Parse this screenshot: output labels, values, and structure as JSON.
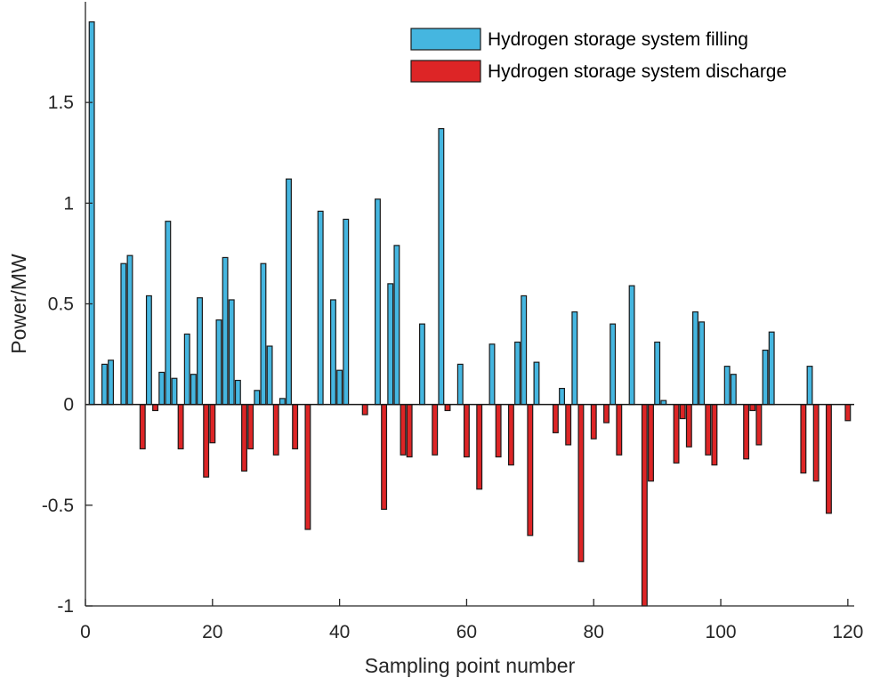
{
  "chart_data": {
    "type": "bar",
    "title": "",
    "xlabel": "Sampling point number",
    "ylabel": "Power/MW",
    "xlim": [
      0,
      121
    ],
    "ylim": [
      -1,
      2
    ],
    "xticks": [
      0,
      20,
      40,
      60,
      80,
      100,
      120
    ],
    "yticks": [
      -1,
      -0.5,
      0,
      0.5,
      1,
      1.5
    ],
    "ytick_labels": [
      "-1",
      "-0.5",
      "0",
      "0.5",
      "1",
      "1.5"
    ],
    "grid": false,
    "legend_position": "top-right",
    "colors": {
      "filling": "#45b6e0",
      "discharge": "#dd2526",
      "edge": "#1a1a1a",
      "axis": "#262626"
    },
    "series": [
      {
        "name": "Hydrogen storage system filling",
        "points": [
          {
            "x": 1,
            "y": 1.9
          },
          {
            "x": 3,
            "y": 0.2
          },
          {
            "x": 4,
            "y": 0.22
          },
          {
            "x": 6,
            "y": 0.7
          },
          {
            "x": 7,
            "y": 0.74
          },
          {
            "x": 10,
            "y": 0.54
          },
          {
            "x": 12,
            "y": 0.16
          },
          {
            "x": 13,
            "y": 0.91
          },
          {
            "x": 14,
            "y": 0.13
          },
          {
            "x": 16,
            "y": 0.35
          },
          {
            "x": 17,
            "y": 0.15
          },
          {
            "x": 18,
            "y": 0.53
          },
          {
            "x": 21,
            "y": 0.42
          },
          {
            "x": 22,
            "y": 0.73
          },
          {
            "x": 23,
            "y": 0.52
          },
          {
            "x": 24,
            "y": 0.12
          },
          {
            "x": 27,
            "y": 0.07
          },
          {
            "x": 28,
            "y": 0.7
          },
          {
            "x": 29,
            "y": 0.29
          },
          {
            "x": 31,
            "y": 0.03
          },
          {
            "x": 32,
            "y": 1.12
          },
          {
            "x": 37,
            "y": 0.96
          },
          {
            "x": 39,
            "y": 0.52
          },
          {
            "x": 40,
            "y": 0.17
          },
          {
            "x": 41,
            "y": 0.92
          },
          {
            "x": 46,
            "y": 1.02
          },
          {
            "x": 48,
            "y": 0.6
          },
          {
            "x": 49,
            "y": 0.79
          },
          {
            "x": 53,
            "y": 0.4
          },
          {
            "x": 56,
            "y": 1.37
          },
          {
            "x": 59,
            "y": 0.2
          },
          {
            "x": 64,
            "y": 0.3
          },
          {
            "x": 68,
            "y": 0.31
          },
          {
            "x": 69,
            "y": 0.54
          },
          {
            "x": 71,
            "y": 0.21
          },
          {
            "x": 75,
            "y": 0.08
          },
          {
            "x": 77,
            "y": 0.46
          },
          {
            "x": 83,
            "y": 0.4
          },
          {
            "x": 86,
            "y": 0.59
          },
          {
            "x": 90,
            "y": 0.31
          },
          {
            "x": 91,
            "y": 0.02
          },
          {
            "x": 96,
            "y": 0.46
          },
          {
            "x": 97,
            "y": 0.41
          },
          {
            "x": 101,
            "y": 0.19
          },
          {
            "x": 102,
            "y": 0.15
          },
          {
            "x": 107,
            "y": 0.27
          },
          {
            "x": 108,
            "y": 0.36
          },
          {
            "x": 114,
            "y": 0.19
          }
        ]
      },
      {
        "name": "Hydrogen storage system discharge",
        "points": [
          {
            "x": 9,
            "y": -0.22
          },
          {
            "x": 11,
            "y": -0.03
          },
          {
            "x": 15,
            "y": -0.22
          },
          {
            "x": 19,
            "y": -0.36
          },
          {
            "x": 20,
            "y": -0.19
          },
          {
            "x": 25,
            "y": -0.33
          },
          {
            "x": 26,
            "y": -0.22
          },
          {
            "x": 30,
            "y": -0.25
          },
          {
            "x": 33,
            "y": -0.22
          },
          {
            "x": 35,
            "y": -0.62
          },
          {
            "x": 44,
            "y": -0.05
          },
          {
            "x": 47,
            "y": -0.52
          },
          {
            "x": 50,
            "y": -0.25
          },
          {
            "x": 51,
            "y": -0.26
          },
          {
            "x": 55,
            "y": -0.25
          },
          {
            "x": 57,
            "y": -0.03
          },
          {
            "x": 60,
            "y": -0.26
          },
          {
            "x": 62,
            "y": -0.42
          },
          {
            "x": 65,
            "y": -0.26
          },
          {
            "x": 67,
            "y": -0.3
          },
          {
            "x": 70,
            "y": -0.65
          },
          {
            "x": 74,
            "y": -0.14
          },
          {
            "x": 76,
            "y": -0.2
          },
          {
            "x": 78,
            "y": -0.78
          },
          {
            "x": 80,
            "y": -0.17
          },
          {
            "x": 82,
            "y": -0.09
          },
          {
            "x": 84,
            "y": -0.25
          },
          {
            "x": 88,
            "y": -1.0
          },
          {
            "x": 89,
            "y": -0.38
          },
          {
            "x": 93,
            "y": -0.29
          },
          {
            "x": 94,
            "y": -0.07
          },
          {
            "x": 95,
            "y": -0.21
          },
          {
            "x": 98,
            "y": -0.25
          },
          {
            "x": 99,
            "y": -0.3
          },
          {
            "x": 104,
            "y": -0.27
          },
          {
            "x": 105,
            "y": -0.03
          },
          {
            "x": 106,
            "y": -0.2
          },
          {
            "x": 113,
            "y": -0.34
          },
          {
            "x": 115,
            "y": -0.38
          },
          {
            "x": 117,
            "y": -0.54
          },
          {
            "x": 120,
            "y": -0.08
          }
        ]
      }
    ]
  }
}
